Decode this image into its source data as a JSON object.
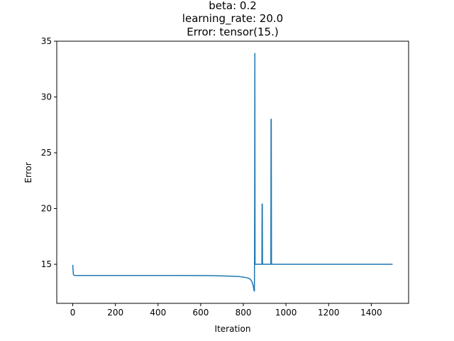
{
  "chart_data": {
    "type": "line",
    "title_lines": [
      "beta: 0.2",
      "learning_rate: 20.0",
      "Error: tensor(15.)"
    ],
    "xlabel": "Iteration",
    "ylabel": "Error",
    "xlim": [
      -75,
      1575
    ],
    "ylim": [
      11.5,
      35
    ],
    "x_ticks": [
      0,
      200,
      400,
      600,
      800,
      1000,
      1200,
      1400
    ],
    "y_ticks": [
      15,
      20,
      25,
      30,
      35
    ],
    "grid": false,
    "line_color": "#1f77b4",
    "series": [
      {
        "x": [
          0,
          3,
          6,
          10,
          20,
          50,
          100,
          200,
          300,
          400,
          500,
          600,
          650,
          700,
          750,
          780,
          800,
          810,
          820,
          830,
          835,
          840,
          843,
          846,
          848,
          850,
          852,
          853,
          854,
          855,
          856,
          857,
          858,
          859,
          860,
          870,
          880,
          887,
          888,
          889,
          890,
          891,
          892,
          893,
          895,
          900,
          910,
          920,
          928,
          929,
          930,
          931,
          932,
          933,
          934,
          935,
          940,
          1000,
          1100,
          1200,
          1300,
          1400,
          1500
        ],
        "y": [
          14.95,
          14.1,
          14.02,
          14.0,
          14.0,
          14.0,
          14.0,
          14.0,
          14.0,
          14.0,
          14.0,
          13.99,
          13.98,
          13.96,
          13.93,
          13.9,
          13.85,
          13.82,
          13.78,
          13.7,
          13.6,
          13.45,
          13.3,
          13.1,
          12.9,
          12.65,
          12.6,
          20.0,
          33.9,
          15.0,
          15.0,
          15.0,
          15.0,
          15.0,
          15.0,
          15.0,
          15.0,
          15.0,
          20.4,
          20.4,
          15.0,
          15.0,
          15.0,
          15.0,
          15.0,
          15.0,
          15.0,
          15.0,
          15.0,
          15.0,
          28.0,
          28.0,
          15.0,
          15.0,
          15.0,
          15.0,
          15.0,
          15.0,
          15.0,
          15.0,
          15.0,
          15.0,
          15.0
        ]
      }
    ]
  }
}
